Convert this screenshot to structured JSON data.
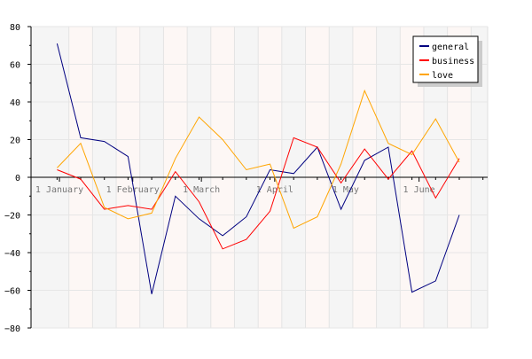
{
  "chart_data": {
    "type": "line",
    "title": "",
    "xlabel": "",
    "ylabel": "",
    "ylim": [
      -80,
      80
    ],
    "yticks": [
      -80,
      -60,
      -40,
      -20,
      0,
      20,
      40,
      60,
      80
    ],
    "ytick_labels": [
      "−80",
      "−60",
      "−40",
      "−20",
      "0",
      "20",
      "40",
      "60",
      "80"
    ],
    "xticks": [
      {
        "date": "2012-01-01",
        "label": "1 January"
      },
      {
        "date": "2012-02-01",
        "label": "1 February"
      },
      {
        "date": "2012-03-01",
        "label": "1 March"
      },
      {
        "date": "2012-04-01",
        "label": "1 April"
      },
      {
        "date": "2012-05-01",
        "label": "1 May"
      },
      {
        "date": "2012-06-01",
        "label": "1 June"
      }
    ],
    "xlim": [
      "2011-12-20",
      "2012-06-30"
    ],
    "x": [
      "2011-12-31",
      "2012-01-10",
      "2012-01-20",
      "2012-01-30",
      "2012-02-09",
      "2012-02-19",
      "2012-02-29",
      "2012-03-10",
      "2012-03-20",
      "2012-03-30",
      "2012-04-09",
      "2012-04-19",
      "2012-04-29",
      "2012-05-09",
      "2012-05-19",
      "2012-05-29",
      "2012-06-08",
      "2012-06-18",
      "2012-06-28"
    ],
    "series": [
      {
        "name": "general",
        "color": "#000080",
        "values": [
          71,
          21,
          19,
          11,
          -62,
          -10,
          -22,
          -31,
          -21,
          4,
          2,
          16,
          -17,
          9,
          16,
          -61,
          -55,
          -20,
          null
        ]
      },
      {
        "name": "business",
        "color": "#ff0000",
        "values": [
          4,
          -1,
          -17,
          -15,
          -17,
          3,
          -13,
          -38,
          -33,
          -18,
          21,
          16,
          -3,
          15,
          -1,
          14,
          -11,
          10,
          null
        ]
      },
      {
        "name": "love",
        "color": "#ffa500",
        "values": [
          5,
          18,
          -16,
          -22,
          -19,
          10,
          32,
          20,
          4,
          7,
          -27,
          -21,
          7,
          46,
          18,
          12,
          31,
          8,
          null
        ]
      }
    ],
    "legend_position": "top-right",
    "grid": true
  }
}
